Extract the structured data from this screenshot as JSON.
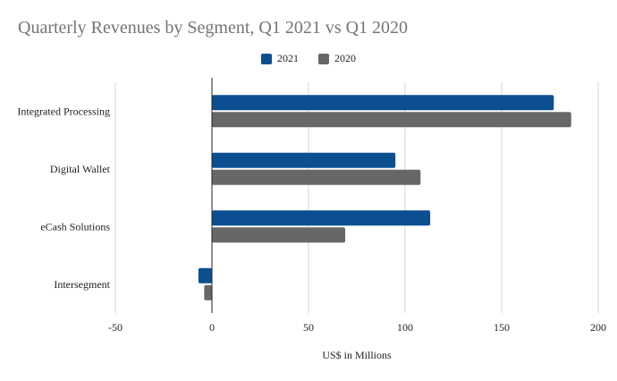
{
  "chart_data": {
    "type": "bar",
    "orientation": "horizontal",
    "title": "Quarterly Revenues by Segment, Q1 2021 vs Q1 2020",
    "xlabel": "US$ in Millions",
    "ylabel": "",
    "categories": [
      "Integrated Processing",
      "Digital Wallet",
      "eCash Solutions",
      "Intersegment"
    ],
    "series": [
      {
        "name": "2021",
        "color": "#0b4f91",
        "values": [
          177,
          95,
          113,
          -7
        ]
      },
      {
        "name": "2020",
        "color": "#676767",
        "values": [
          186,
          108,
          69,
          -4
        ]
      }
    ],
    "xlim": [
      -50,
      200
    ],
    "xticks": [
      "-50",
      "0",
      "50",
      "100",
      "150",
      "200"
    ],
    "grid": true,
    "legend_position": "top"
  }
}
